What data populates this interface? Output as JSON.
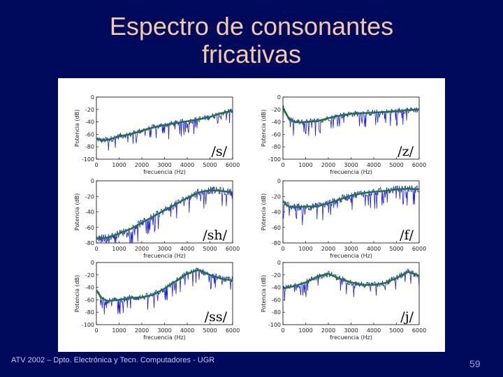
{
  "slide": {
    "title_line1": "Espectro de consonantes",
    "title_line2": "fricativas",
    "footer": "ATV 2002 – Dpto. Electrónica y Tecn. Computadores - UGR",
    "page_number": "59",
    "colors": {
      "background": "#000a5c",
      "title": "#f4c9a8",
      "spectrum": "#1a1aff",
      "envelope": "#1e7a2a"
    }
  },
  "chart_data": [
    {
      "type": "line",
      "annotation": "/s/",
      "xlabel": "frecuencia (Hz)",
      "ylabel": "Potencia (dB)",
      "xlim": [
        0,
        6000
      ],
      "ylim": [
        -100,
        0
      ],
      "xticks": [
        "0",
        "1000",
        "2000",
        "3000",
        "4000",
        "5000",
        "6000"
      ],
      "yticks": [
        "0",
        "-20",
        "-40",
        "-60",
        "-80",
        "-100"
      ],
      "series": [
        {
          "x": [
            0,
            250,
            500,
            1000,
            1500,
            2000,
            2500,
            3000,
            3500,
            4000,
            4500,
            5000,
            5500,
            6000
          ],
          "values": [
            -67,
            -70,
            -69,
            -63,
            -60,
            -54,
            -49,
            -45,
            -42,
            -39,
            -36,
            -32,
            -26,
            -22
          ]
        }
      ]
    },
    {
      "type": "line",
      "annotation": "/z/",
      "xlabel": "frecuencia (Hz)",
      "ylabel": "Potencia (dB)",
      "xlim": [
        0,
        6000
      ],
      "ylim": [
        -100,
        0
      ],
      "xticks": [
        "0",
        "1000",
        "2000",
        "3000",
        "4000",
        "5000",
        "6000"
      ],
      "yticks": [
        "0",
        "-20",
        "-40",
        "-60",
        "-80",
        "-100"
      ],
      "series": [
        {
          "x": [
            0,
            250,
            500,
            750,
            1000,
            1500,
            2000,
            2500,
            3000,
            3500,
            4000,
            4500,
            5000,
            5500,
            6000
          ],
          "values": [
            -17,
            -34,
            -40,
            -41,
            -40,
            -39,
            -34,
            -30,
            -27,
            -26,
            -25,
            -24,
            -23,
            -21,
            -20
          ]
        }
      ]
    },
    {
      "type": "line",
      "annotation": "/sh/",
      "xlabel": "frecuencia (Hz)",
      "ylabel": "Potencia (dB)",
      "xlim": [
        0,
        6000
      ],
      "ylim": [
        -80,
        0
      ],
      "xticks": [
        "0",
        "1000",
        "2000",
        "3000",
        "4000",
        "5000",
        "6000"
      ],
      "yticks": [
        "0",
        "-20",
        "-40",
        "-60",
        "-80"
      ],
      "series": [
        {
          "x": [
            0,
            500,
            1000,
            1500,
            2000,
            2500,
            3000,
            3500,
            4000,
            4500,
            5000,
            5500,
            6000
          ],
          "values": [
            -75,
            -73,
            -68,
            -62,
            -54,
            -46,
            -38,
            -30,
            -22,
            -15,
            -12,
            -13,
            -15
          ]
        }
      ]
    },
    {
      "type": "line",
      "annotation": "/f/",
      "xlabel": "frecuencia (Hz)",
      "ylabel": "Potencia (dB)",
      "xlim": [
        0,
        6000
      ],
      "ylim": [
        -80,
        0
      ],
      "xticks": [
        "0",
        "1000",
        "2000",
        "3000",
        "4000",
        "5000",
        "6000"
      ],
      "yticks": [
        "0",
        "-20",
        "-40",
        "-60",
        "-80"
      ],
      "series": [
        {
          "x": [
            0,
            250,
            500,
            1000,
            1500,
            2000,
            2500,
            3000,
            3500,
            4000,
            4500,
            5000,
            5500,
            6000
          ],
          "values": [
            -26,
            -33,
            -34,
            -33,
            -33,
            -29,
            -24,
            -19,
            -16,
            -14,
            -13,
            -11,
            -10,
            -11
          ]
        }
      ]
    },
    {
      "type": "line",
      "annotation": "/ss/",
      "xlabel": "frecuencia (Hz)",
      "ylabel": "Potencia (dB)",
      "xlim": [
        0,
        6000
      ],
      "ylim": [
        -100,
        0
      ],
      "xticks": [
        "0",
        "1000",
        "2000",
        "3000",
        "4000",
        "5000",
        "6000"
      ],
      "yticks": [
        "0",
        "-20",
        "-40",
        "-60",
        "-80",
        "-100"
      ],
      "series": [
        {
          "x": [
            0,
            250,
            500,
            1000,
            1500,
            2000,
            2500,
            3000,
            3500,
            4000,
            4500,
            5000,
            5500,
            6000
          ],
          "values": [
            -45,
            -58,
            -62,
            -60,
            -57,
            -56,
            -52,
            -42,
            -30,
            -18,
            -12,
            -20,
            -26,
            -29
          ]
        }
      ]
    },
    {
      "type": "line",
      "annotation": "/j/",
      "xlabel": "frecuencia (Hz)",
      "ylabel": "Potencia (dB)",
      "xlim": [
        0,
        6000
      ],
      "ylim": [
        -100,
        0
      ],
      "xticks": [
        "0",
        "1000",
        "2000",
        "3000",
        "4000",
        "5000",
        "6000"
      ],
      "yticks": [
        "0",
        "-20",
        "-40",
        "-60",
        "-80",
        "-100"
      ],
      "series": [
        {
          "x": [
            0,
            250,
            500,
            1000,
            1500,
            2000,
            2500,
            3000,
            3500,
            4000,
            4500,
            5000,
            5500,
            6000
          ],
          "values": [
            -42,
            -40,
            -38,
            -32,
            -23,
            -18,
            -26,
            -32,
            -36,
            -36,
            -33,
            -25,
            -15,
            -21
          ]
        }
      ]
    }
  ]
}
